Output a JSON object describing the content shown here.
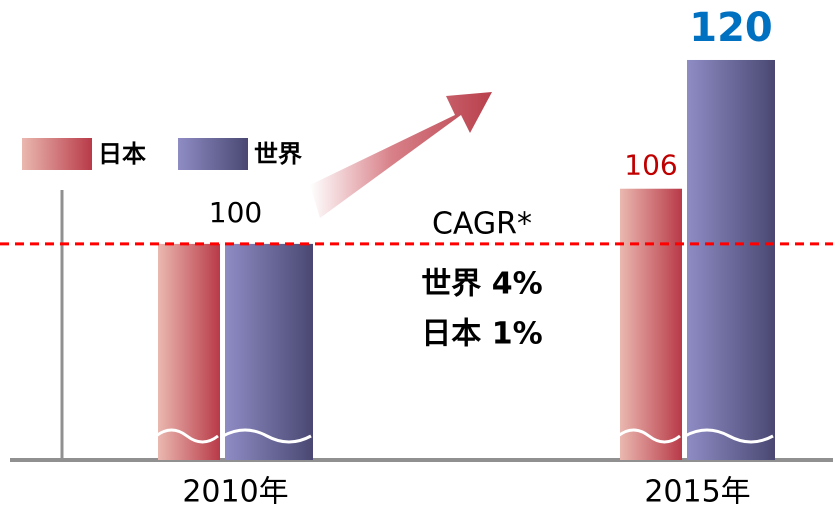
{
  "chart_data": {
    "type": "bar",
    "categories": [
      "2010年",
      "2015年"
    ],
    "series": [
      {
        "name": "日本",
        "color": "#b83a48",
        "light": "#eab8b0",
        "label_color": "#c00000",
        "values": [
          100,
          106
        ]
      },
      {
        "name": "世界",
        "color": "#4a4872",
        "light": "#8e8cc4",
        "label_color": "#0070c0",
        "values": [
          100,
          120
        ]
      }
    ],
    "ylim": [
      76.5,
      125
    ],
    "reference_line": {
      "value": 100,
      "color": "#ff0000"
    },
    "annotations": [
      "CAGR*",
      "世界 4%",
      "日本 1%"
    ],
    "legend": "top-left"
  }
}
